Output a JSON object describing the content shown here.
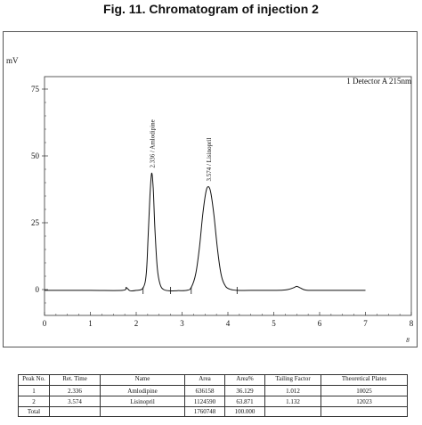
{
  "figure": {
    "title": "Fig. 11. Chromatogram of injection 2"
  },
  "chart_data": {
    "type": "line",
    "ylabel": "mV",
    "xlabel": "",
    "xlim": [
      0,
      8
    ],
    "ylim": [
      -8,
      80
    ],
    "xticks": [
      0,
      1,
      2,
      3,
      4,
      5,
      6,
      7,
      8
    ],
    "yticks": [
      0,
      25,
      50,
      75
    ],
    "legend": "1 Detector A 215nm",
    "legend_position": "top-right",
    "axis_marker": "8",
    "series": [
      {
        "name": "1 Detector A 215nm",
        "x": [
          0.0,
          1.0,
          1.7,
          1.78,
          1.86,
          2.0,
          2.15,
          2.22,
          2.26,
          2.3,
          2.336,
          2.37,
          2.41,
          2.46,
          2.52,
          2.6,
          2.75,
          2.9,
          3.1,
          3.2,
          3.3,
          3.38,
          3.45,
          3.52,
          3.574,
          3.63,
          3.7,
          3.78,
          3.86,
          3.95,
          4.05,
          4.2,
          4.5,
          5.2,
          5.42,
          5.5,
          5.58,
          5.7,
          6.0,
          7.0
        ],
        "y": [
          -0.3,
          -0.3,
          -0.3,
          0.8,
          -0.4,
          -0.3,
          0.6,
          6.0,
          20.0,
          35.0,
          43.5,
          38.0,
          22.0,
          8.0,
          2.0,
          0.0,
          -0.5,
          -0.4,
          -0.3,
          0.8,
          6.0,
          16.0,
          28.0,
          36.5,
          38.5,
          36.0,
          27.0,
          14.0,
          5.0,
          1.2,
          0.1,
          -0.3,
          -0.3,
          -0.2,
          0.6,
          1.2,
          0.6,
          -0.2,
          -0.3,
          -0.3
        ]
      }
    ],
    "peak_labels": [
      {
        "x": 2.336,
        "y": 43.5,
        "text": "2.336 / Amlodipine"
      },
      {
        "x": 3.574,
        "y": 38.5,
        "text": "3.574 / Lisinopril"
      }
    ]
  },
  "table": {
    "headers": [
      "Peak No.",
      "Ret. Time",
      "Name",
      "Area",
      "Area%",
      "Tailing Factor",
      "Theoretical Plates"
    ],
    "rows": [
      [
        "1",
        "2.336",
        "Amlodipine",
        "636158",
        "36.129",
        "1.012",
        "10025"
      ],
      [
        "2",
        "3.574",
        "Lisinopril",
        "1124590",
        "63.871",
        "1.132",
        "12023"
      ]
    ],
    "total": {
      "label": "Total",
      "area": "1760748",
      "area_pct": "100.000"
    }
  }
}
